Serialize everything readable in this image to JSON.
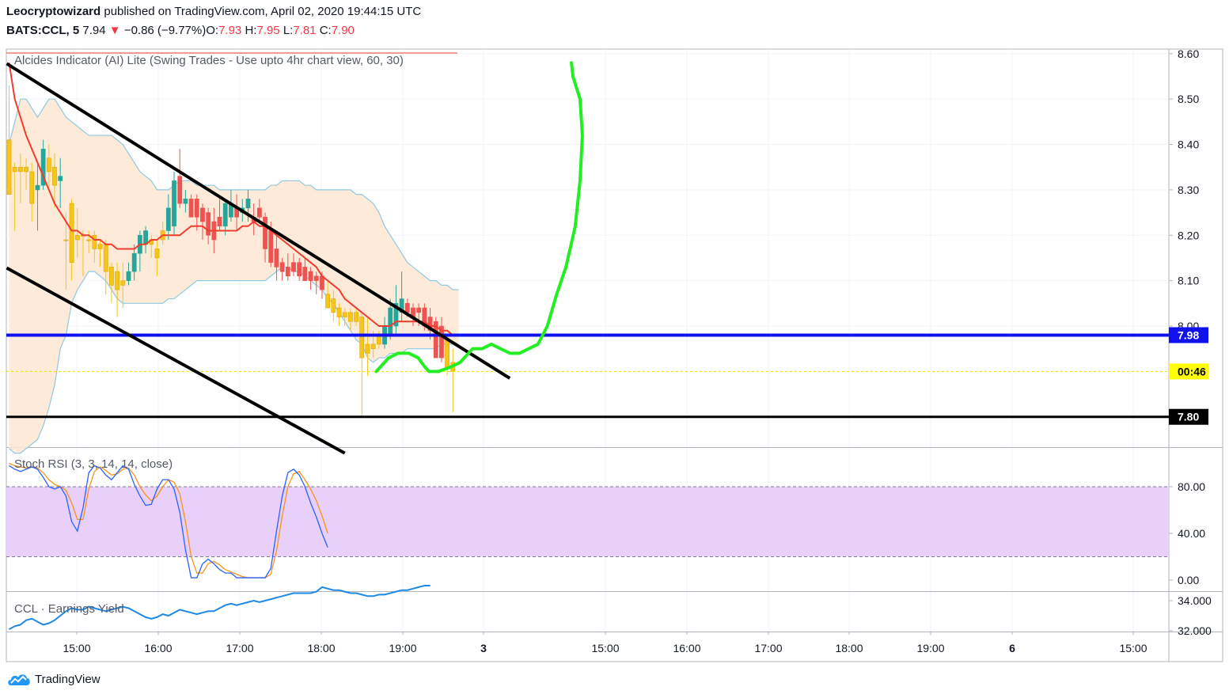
{
  "header": {
    "author": "Leocryptowizard",
    "published_text": "published on TradingView.com, April 02, 2020 19:44:15 UTC",
    "symbol": "BATS:CCL, 5",
    "last": "7.94",
    "change_arrow": "▼",
    "change": "−0.86 (−9.77%)",
    "o_label": "O:",
    "o_value": "7.93",
    "h_label": "H:",
    "h_value": "7.95",
    "l_label": "L:",
    "l_value": "7.81",
    "c_label": "C:",
    "c_value": "7.90"
  },
  "panes": {
    "main_title": "Alcides Indicator (AI) Lite (Swing Trades - Use upto 4hr chart view, 60, 30)",
    "stoch_title": "Stoch RSI (3, 3, 14, 14, close)",
    "yield_title": "CCL · Earnings Yield"
  },
  "brand": {
    "name": "TradingView",
    "icon": "tradingview-cloud-icon"
  },
  "colors": {
    "up": "#26a69a",
    "down": "#ef5350",
    "yellow": "#f5c518",
    "ema": "#f23d2e",
    "band_fill": "#fde6d2",
    "band_line": "#8ec9e3",
    "channel": "#000000",
    "support_blue": "#1010f0",
    "support_black": "#000000",
    "arrow": "#22ee22",
    "stoch_k": "#2962ff",
    "stoch_d": "#f7931a",
    "stoch_fill": "#e8d0fb",
    "yield_line": "#1e88e5"
  },
  "chart_data": {
    "type": "candlestick",
    "price_axis": {
      "min": 7.7,
      "max": 8.62,
      "ticks": [
        "8.60",
        "8.50",
        "8.40",
        "8.30",
        "8.20",
        "8.10",
        "8.00"
      ]
    },
    "time_axis": {
      "labels": [
        "15:00",
        "16:00",
        "17:00",
        "18:00",
        "19:00",
        "3",
        "15:00",
        "16:00",
        "17:00",
        "18:00",
        "19:00",
        "6",
        "15:00"
      ]
    },
    "price_tags": [
      {
        "value": 7.98,
        "text": "7.98",
        "bg": "#1010f0",
        "fg": "#ffffff"
      },
      {
        "value": 7.9,
        "text": "00:46",
        "bg": "#ffff00",
        "fg": "#000000"
      },
      {
        "value": 7.8,
        "text": "7.80",
        "bg": "#000000",
        "fg": "#ffffff"
      }
    ],
    "hlines": [
      {
        "value": 7.98,
        "color": "#1010f0",
        "width": 4
      },
      {
        "value": 7.8,
        "color": "#000000",
        "width": 3
      },
      {
        "value": 7.9,
        "color": "#e6e000",
        "width": 1,
        "dashed": true
      }
    ],
    "channel_lines": [
      {
        "from": {
          "bar": 0,
          "price": 8.578
        },
        "to": {
          "bar": 88,
          "price": 7.885
        }
      },
      {
        "from": {
          "bar": 0,
          "price": 8.128
        },
        "to": {
          "bar": 59,
          "price": 7.72
        }
      }
    ],
    "candles": [
      {
        "o": 8.29,
        "h": 8.53,
        "l": 8.29,
        "c": 8.41,
        "col": "y"
      },
      {
        "o": 8.34,
        "h": 8.36,
        "l": 8.21,
        "c": 8.35,
        "col": "y"
      },
      {
        "o": 8.35,
        "h": 8.38,
        "l": 8.27,
        "c": 8.34,
        "col": "y"
      },
      {
        "o": 8.35,
        "h": 8.37,
        "l": 8.3,
        "c": 8.34,
        "col": "y"
      },
      {
        "o": 8.34,
        "h": 8.36,
        "l": 8.23,
        "c": 8.27,
        "col": "y"
      },
      {
        "o": 8.3,
        "h": 8.36,
        "l": 8.21,
        "c": 8.31,
        "col": "g"
      },
      {
        "o": 8.31,
        "h": 8.41,
        "l": 8.3,
        "c": 8.39,
        "col": "g"
      },
      {
        "o": 8.37,
        "h": 8.4,
        "l": 8.3,
        "c": 8.34,
        "col": "y"
      },
      {
        "o": 8.35,
        "h": 8.38,
        "l": 8.26,
        "c": 8.31,
        "col": "y"
      },
      {
        "o": 8.33,
        "h": 8.37,
        "l": 8.26,
        "c": 8.32,
        "col": "g"
      },
      {
        "o": 8.19,
        "h": 8.25,
        "l": 8.08,
        "c": 8.19,
        "col": "y"
      },
      {
        "o": 8.27,
        "h": 8.28,
        "l": 8.1,
        "c": 8.14,
        "col": "y"
      },
      {
        "o": 8.19,
        "h": 8.26,
        "l": 8.15,
        "c": 8.2,
        "col": "y"
      },
      {
        "o": 8.2,
        "h": 8.21,
        "l": 8.11,
        "c": 8.2,
        "col": "y"
      },
      {
        "o": 8.19,
        "h": 8.21,
        "l": 8.16,
        "c": 8.19,
        "col": "y"
      },
      {
        "o": 8.2,
        "h": 8.21,
        "l": 8.14,
        "c": 8.17,
        "col": "y"
      },
      {
        "o": 8.18,
        "h": 8.19,
        "l": 8.13,
        "c": 8.17,
        "col": "y"
      },
      {
        "o": 8.18,
        "h": 8.19,
        "l": 8.07,
        "c": 8.12,
        "col": "y"
      },
      {
        "o": 8.13,
        "h": 8.14,
        "l": 8.05,
        "c": 8.09,
        "col": "y"
      },
      {
        "o": 8.12,
        "h": 8.14,
        "l": 8.02,
        "c": 8.08,
        "col": "y"
      },
      {
        "o": 8.1,
        "h": 8.14,
        "l": 8.04,
        "c": 8.09,
        "col": "y"
      },
      {
        "o": 8.1,
        "h": 8.14,
        "l": 8.09,
        "c": 8.12,
        "col": "g"
      },
      {
        "o": 8.12,
        "h": 8.18,
        "l": 8.1,
        "c": 8.16,
        "col": "g"
      },
      {
        "o": 8.16,
        "h": 8.21,
        "l": 8.12,
        "c": 8.2,
        "col": "g"
      },
      {
        "o": 8.18,
        "h": 8.22,
        "l": 8.16,
        "c": 8.21,
        "col": "g"
      },
      {
        "o": 8.18,
        "h": 8.2,
        "l": 8.15,
        "c": 8.19,
        "col": "y"
      },
      {
        "o": 8.15,
        "h": 8.19,
        "l": 8.11,
        "c": 8.17,
        "col": "y"
      },
      {
        "o": 8.21,
        "h": 8.23,
        "l": 8.18,
        "c": 8.19,
        "col": "y"
      },
      {
        "o": 8.21,
        "h": 8.29,
        "l": 8.19,
        "c": 8.26,
        "col": "g"
      },
      {
        "o": 8.22,
        "h": 8.34,
        "l": 8.2,
        "c": 8.32,
        "col": "g"
      },
      {
        "o": 8.33,
        "h": 8.39,
        "l": 8.26,
        "c": 8.27,
        "col": "r"
      },
      {
        "o": 8.27,
        "h": 8.3,
        "l": 8.25,
        "c": 8.28,
        "col": "g"
      },
      {
        "o": 8.24,
        "h": 8.29,
        "l": 8.24,
        "c": 8.28,
        "col": "r"
      },
      {
        "o": 8.28,
        "h": 8.29,
        "l": 8.21,
        "c": 8.24,
        "col": "r"
      },
      {
        "o": 8.23,
        "h": 8.27,
        "l": 8.19,
        "c": 8.26,
        "col": "r"
      },
      {
        "o": 8.25,
        "h": 8.26,
        "l": 8.18,
        "c": 8.2,
        "col": "r"
      },
      {
        "o": 8.23,
        "h": 8.26,
        "l": 8.16,
        "c": 8.19,
        "col": "r"
      },
      {
        "o": 8.24,
        "h": 8.28,
        "l": 8.21,
        "c": 8.22,
        "col": "r"
      },
      {
        "o": 8.22,
        "h": 8.28,
        "l": 8.2,
        "c": 8.27,
        "col": "g"
      },
      {
        "o": 8.27,
        "h": 8.3,
        "l": 8.23,
        "c": 8.24,
        "col": "g"
      },
      {
        "o": 8.24,
        "h": 8.29,
        "l": 8.21,
        "c": 8.26,
        "col": "r"
      },
      {
        "o": 8.26,
        "h": 8.28,
        "l": 8.23,
        "c": 8.25,
        "col": "g"
      },
      {
        "o": 8.26,
        "h": 8.3,
        "l": 8.23,
        "c": 8.28,
        "col": "g"
      },
      {
        "o": 8.24,
        "h": 8.27,
        "l": 8.2,
        "c": 8.23,
        "col": "r"
      },
      {
        "o": 8.26,
        "h": 8.28,
        "l": 8.23,
        "c": 8.24,
        "col": "r"
      },
      {
        "o": 8.24,
        "h": 8.25,
        "l": 8.14,
        "c": 8.17,
        "col": "r"
      },
      {
        "o": 8.21,
        "h": 8.23,
        "l": 8.13,
        "c": 8.14,
        "col": "r"
      },
      {
        "o": 8.17,
        "h": 8.21,
        "l": 8.1,
        "c": 8.13,
        "col": "r"
      },
      {
        "o": 8.14,
        "h": 8.15,
        "l": 8.1,
        "c": 8.12,
        "col": "r"
      },
      {
        "o": 8.13,
        "h": 8.16,
        "l": 8.1,
        "c": 8.11,
        "col": "r"
      },
      {
        "o": 8.14,
        "h": 8.16,
        "l": 8.11,
        "c": 8.12,
        "col": "r"
      },
      {
        "o": 8.14,
        "h": 8.15,
        "l": 8.1,
        "c": 8.11,
        "col": "r"
      },
      {
        "o": 8.13,
        "h": 8.15,
        "l": 8.1,
        "c": 8.1,
        "col": "r"
      },
      {
        "o": 8.12,
        "h": 8.13,
        "l": 8.08,
        "c": 8.1,
        "col": "r"
      },
      {
        "o": 8.11,
        "h": 8.12,
        "l": 8.07,
        "c": 8.1,
        "col": "r"
      },
      {
        "o": 8.11,
        "h": 8.12,
        "l": 8.06,
        "c": 8.08,
        "col": "r"
      },
      {
        "o": 8.07,
        "h": 8.1,
        "l": 8.04,
        "c": 8.04,
        "col": "y"
      },
      {
        "o": 8.06,
        "h": 8.08,
        "l": 8.01,
        "c": 8.03,
        "col": "y"
      },
      {
        "o": 8.04,
        "h": 8.05,
        "l": 8.0,
        "c": 8.02,
        "col": "y"
      },
      {
        "o": 8.03,
        "h": 8.04,
        "l": 8.0,
        "c": 8.02,
        "col": "y"
      },
      {
        "o": 8.03,
        "h": 8.04,
        "l": 7.99,
        "c": 8.01,
        "col": "y"
      },
      {
        "o": 8.03,
        "h": 8.04,
        "l": 8.0,
        "c": 8.01,
        "col": "y"
      },
      {
        "o": 8.02,
        "h": 8.03,
        "l": 7.8,
        "c": 7.93,
        "col": "y"
      },
      {
        "o": 7.94,
        "h": 8.02,
        "l": 7.89,
        "c": 7.96,
        "col": "y"
      },
      {
        "o": 7.96,
        "h": 7.99,
        "l": 7.93,
        "c": 7.95,
        "col": "y"
      },
      {
        "o": 7.96,
        "h": 7.99,
        "l": 7.95,
        "c": 7.98,
        "col": "y"
      },
      {
        "o": 7.96,
        "h": 8.02,
        "l": 7.95,
        "c": 8.0,
        "col": "g"
      },
      {
        "o": 7.98,
        "h": 8.06,
        "l": 7.97,
        "c": 8.04,
        "col": "g"
      },
      {
        "o": 8.0,
        "h": 8.09,
        "l": 7.98,
        "c": 8.05,
        "col": "g"
      },
      {
        "o": 8.03,
        "h": 8.12,
        "l": 8.01,
        "c": 8.06,
        "col": "g"
      },
      {
        "o": 8.05,
        "h": 8.06,
        "l": 8.02,
        "c": 8.03,
        "col": "r"
      },
      {
        "o": 8.04,
        "h": 8.05,
        "l": 8.0,
        "c": 8.02,
        "col": "r"
      },
      {
        "o": 8.04,
        "h": 8.05,
        "l": 8.0,
        "c": 8.03,
        "col": "r"
      },
      {
        "o": 8.04,
        "h": 8.05,
        "l": 7.99,
        "c": 8.0,
        "col": "r"
      },
      {
        "o": 8.02,
        "h": 8.04,
        "l": 7.97,
        "c": 7.99,
        "col": "r"
      },
      {
        "o": 8.01,
        "h": 8.02,
        "l": 7.93,
        "c": 7.93,
        "col": "r"
      },
      {
        "o": 8.0,
        "h": 8.02,
        "l": 7.92,
        "c": 7.93,
        "col": "r"
      },
      {
        "o": 7.97,
        "h": 7.98,
        "l": 7.89,
        "c": 7.91,
        "col": "y"
      },
      {
        "o": 7.92,
        "h": 7.95,
        "l": 7.81,
        "c": 7.9,
        "col": "y"
      }
    ],
    "ema_series": [
      8.58,
      8.5,
      8.46,
      8.42,
      8.39,
      8.36,
      8.33,
      8.3,
      8.27,
      8.25,
      8.23,
      8.21,
      8.21,
      8.2,
      8.2,
      8.19,
      8.19,
      8.18,
      8.18,
      8.17,
      8.17,
      8.17,
      8.17,
      8.18,
      8.18,
      8.19,
      8.19,
      8.2,
      8.2,
      8.2,
      8.2,
      8.21,
      8.22,
      8.22,
      8.22,
      8.21,
      8.21,
      8.21,
      8.21,
      8.21,
      8.21,
      8.22,
      8.22,
      8.23,
      8.22,
      8.22,
      8.21,
      8.2,
      8.19,
      8.18,
      8.17,
      8.16,
      8.15,
      8.14,
      8.13,
      8.11,
      8.1,
      8.09,
      8.08,
      8.06,
      8.05,
      8.04,
      8.03,
      8.02,
      8.01,
      8.0,
      8.0,
      8.0,
      8.01,
      8.01,
      8.01,
      8.01,
      8.01,
      8.01,
      8.0,
      8.0,
      7.99,
      7.99,
      7.98,
      7.98
    ],
    "bb_upper": [
      8.4,
      8.45,
      8.5,
      8.5,
      8.48,
      8.46,
      8.48,
      8.5,
      8.5,
      8.48,
      8.46,
      8.45,
      8.44,
      8.43,
      8.42,
      8.42,
      8.42,
      8.42,
      8.42,
      8.41,
      8.4,
      8.38,
      8.36,
      8.34,
      8.33,
      8.32,
      8.3,
      8.3,
      8.3,
      8.31,
      8.32,
      8.32,
      8.32,
      8.31,
      8.31,
      8.31,
      8.31,
      8.3,
      8.3,
      8.3,
      8.3,
      8.3,
      8.3,
      8.3,
      8.3,
      8.3,
      8.31,
      8.31,
      8.32,
      8.32,
      8.32,
      8.32,
      8.31,
      8.31,
      8.3,
      8.3,
      8.3,
      8.3,
      8.3,
      8.3,
      8.3,
      8.29,
      8.29,
      8.28,
      8.27,
      8.25,
      8.22,
      8.2,
      8.18,
      8.16,
      8.14,
      8.13,
      8.12,
      8.11,
      8.1,
      8.1,
      8.09,
      8.09,
      8.08,
      8.08
    ],
    "bb_lower": [
      7.73,
      7.72,
      7.72,
      7.73,
      7.74,
      7.75,
      7.78,
      7.82,
      7.87,
      7.95,
      7.98,
      8.05,
      8.08,
      8.1,
      8.12,
      8.12,
      8.11,
      8.1,
      8.08,
      8.06,
      8.05,
      8.05,
      8.05,
      8.05,
      8.05,
      8.05,
      8.05,
      8.05,
      8.06,
      8.06,
      8.07,
      8.08,
      8.09,
      8.1,
      8.1,
      8.1,
      8.1,
      8.1,
      8.1,
      8.1,
      8.1,
      8.1,
      8.1,
      8.1,
      8.1,
      8.1,
      8.11,
      8.12,
      8.13,
      8.13,
      8.12,
      8.12,
      8.11,
      8.1,
      8.09,
      8.08,
      8.06,
      8.05,
      8.03,
      8.01,
      7.99,
      7.97,
      7.96,
      7.93,
      7.92,
      7.93,
      7.93,
      7.94,
      7.94,
      7.94,
      7.95,
      7.95,
      7.95,
      7.95,
      7.95,
      7.95,
      7.96,
      7.96,
      7.96,
      7.96
    ],
    "drawn_arrow_path": [
      [
        0.3182,
        7.9
      ],
      [
        0.3289,
        7.93
      ],
      [
        0.3369,
        7.94
      ],
      [
        0.3463,
        7.94
      ],
      [
        0.3543,
        7.93
      ],
      [
        0.36,
        7.91
      ],
      [
        0.3636,
        7.9
      ],
      [
        0.3717,
        7.9
      ],
      [
        0.3824,
        7.91
      ],
      [
        0.3904,
        7.92
      ],
      [
        0.4011,
        7.95
      ],
      [
        0.4092,
        7.95
      ],
      [
        0.4172,
        7.96
      ],
      [
        0.4252,
        7.95
      ],
      [
        0.4333,
        7.94
      ],
      [
        0.4413,
        7.94
      ],
      [
        0.4493,
        7.95
      ],
      [
        0.4573,
        7.96
      ],
      [
        0.4654,
        8.0
      ],
      [
        0.4734,
        8.07
      ],
      [
        0.4814,
        8.13
      ],
      [
        0.4894,
        8.22
      ],
      [
        0.4935,
        8.32
      ],
      [
        0.4955,
        8.42
      ],
      [
        0.4935,
        8.5
      ],
      [
        0.4874,
        8.55
      ],
      [
        0.4861,
        8.58
      ]
    ],
    "stoch": {
      "axis": {
        "ticks": [
          "80.00",
          "40.00",
          "0.00"
        ]
      },
      "band": [
        20,
        80
      ],
      "k": [
        98,
        95,
        93,
        95,
        97,
        95,
        88,
        80,
        78,
        80,
        72,
        50,
        42,
        62,
        92,
        98,
        96,
        90,
        86,
        92,
        98,
        95,
        82,
        72,
        64,
        65,
        78,
        86,
        86,
        78,
        58,
        26,
        2,
        2,
        14,
        18,
        14,
        9,
        6,
        6,
        2,
        2,
        2,
        2,
        2,
        2,
        10,
        42,
        72,
        92,
        95,
        90,
        80,
        66,
        54,
        40,
        28
      ],
      "d": [
        100,
        98,
        97,
        96,
        97,
        96,
        92,
        86,
        82,
        80,
        77,
        66,
        52,
        52,
        78,
        93,
        97,
        94,
        90,
        91,
        95,
        96,
        90,
        80,
        73,
        68,
        72,
        80,
        86,
        84,
        74,
        50,
        20,
        6,
        6,
        14,
        16,
        13,
        9,
        7,
        5,
        3,
        2,
        2,
        2,
        2,
        5,
        25,
        55,
        80,
        91,
        93,
        86,
        78,
        68,
        55,
        40
      ]
    },
    "earnings_yield": {
      "axis": {
        "ticks": [
          "34.000",
          "32.000"
        ]
      },
      "values": [
        32.1,
        32.3,
        32.4,
        32.7,
        32.8,
        32.6,
        32.4,
        32.5,
        32.7,
        33.0,
        33.3,
        33.5,
        33.4,
        33.4,
        33.6,
        33.5,
        33.4,
        33.3,
        33.4,
        33.5,
        33.6,
        33.5,
        33.3,
        33.1,
        32.9,
        32.8,
        32.9,
        33.1,
        33.0,
        33.2,
        33.4,
        33.3,
        33.2,
        33.1,
        33.2,
        33.3,
        33.3,
        33.5,
        33.7,
        33.8,
        33.7,
        33.8,
        33.9,
        34.0,
        33.9,
        34.0,
        34.1,
        34.2,
        34.3,
        34.4,
        34.5,
        34.5,
        34.5,
        34.5,
        34.6,
        34.9,
        34.8,
        34.7,
        34.7,
        34.6,
        34.5,
        34.5,
        34.4,
        34.3,
        34.3,
        34.4,
        34.4,
        34.5,
        34.6,
        34.7,
        34.7,
        34.8,
        34.9,
        35.0,
        35.0
      ]
    }
  }
}
